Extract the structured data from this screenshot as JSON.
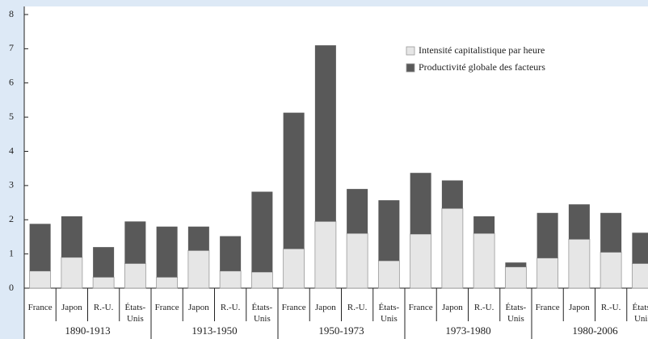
{
  "chart_data": {
    "type": "stacked-bar",
    "groups": [
      "1890-1913",
      "1913-1950",
      "1950-1973",
      "1973-1980",
      "1980-2006"
    ],
    "categories": [
      "France",
      "Japon",
      "R.-U.",
      "États-Unis",
      "France",
      "Japon",
      "R.-U.",
      "États-Unis",
      "France",
      "Japon",
      "R.-U.",
      "États-Unis",
      "France",
      "Japon",
      "R.-U.",
      "États-Unis",
      "France",
      "Japon",
      "R.-U.",
      "États-Unis"
    ],
    "series": [
      {
        "name": "Intensité capitalistique par heure",
        "color": "#e6e6e6",
        "values": [
          0.5,
          0.9,
          0.32,
          0.72,
          0.32,
          1.1,
          0.5,
          0.47,
          1.15,
          1.95,
          1.6,
          0.8,
          1.58,
          2.33,
          1.6,
          0.62,
          0.88,
          1.43,
          1.05,
          0.72
        ]
      },
      {
        "name": "Productivité globale des facteurs",
        "color": "#595959",
        "values": [
          1.38,
          1.2,
          0.88,
          1.23,
          1.48,
          0.7,
          1.02,
          2.35,
          3.98,
          5.15,
          1.3,
          1.77,
          1.79,
          0.82,
          0.5,
          0.13,
          1.32,
          1.02,
          1.15,
          0.9
        ]
      }
    ],
    "ylim": [
      0,
      8
    ],
    "yticks": [
      0,
      1,
      2,
      3,
      4,
      5,
      6,
      7,
      8
    ],
    "grid": false
  }
}
